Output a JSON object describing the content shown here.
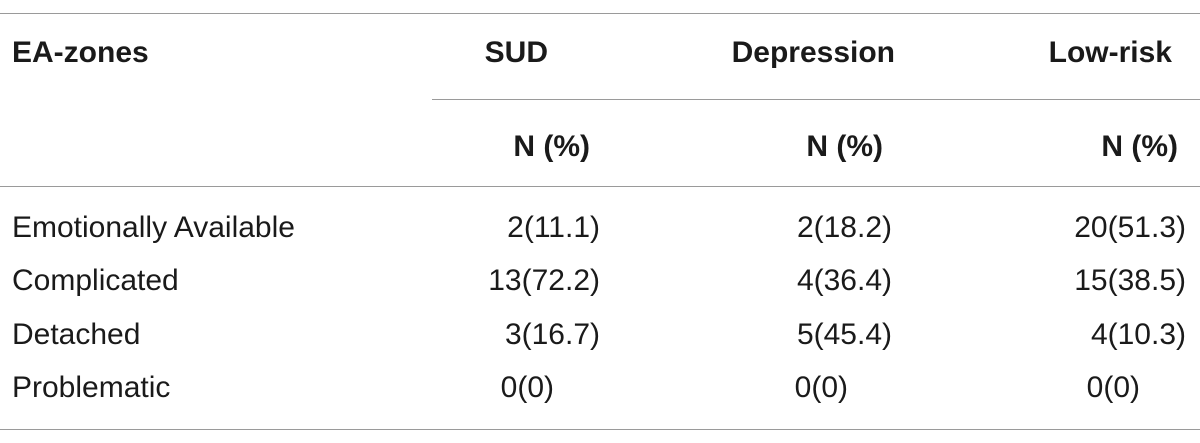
{
  "table": {
    "header": {
      "row_label": "EA-zones",
      "groups": [
        "SUD",
        "Depression",
        "Low-risk"
      ],
      "subheaders": [
        "N (%)",
        "N (%)",
        "N (%)"
      ]
    },
    "rows": [
      {
        "label": "Emotionally Available",
        "values": [
          "2(11.1)",
          "2(18.2)",
          "20(51.3)"
        ]
      },
      {
        "label": "Complicated",
        "values": [
          "13(72.2)",
          "4(36.4)",
          "15(38.5)"
        ]
      },
      {
        "label": "Detached",
        "values": [
          "3(16.7)",
          "5(45.4)",
          "4(10.3)"
        ]
      },
      {
        "label": "Problematic",
        "values": [
          "0(0)",
          "0(0)",
          "0(0)"
        ]
      }
    ]
  }
}
